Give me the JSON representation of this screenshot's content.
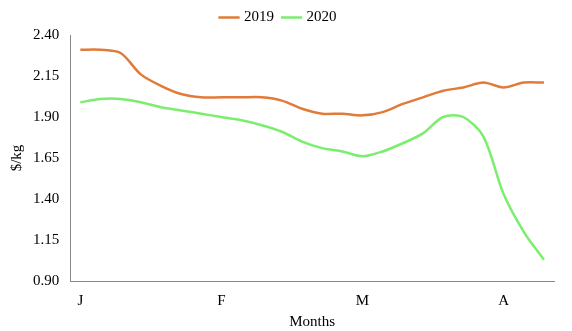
{
  "chart_data": {
    "type": "line",
    "x_label": "Months",
    "y_label": "$/kg",
    "categories": [
      "J",
      null,
      null,
      null,
      null,
      null,
      null,
      "F",
      null,
      null,
      null,
      null,
      null,
      null,
      "M",
      null,
      null,
      null,
      null,
      null,
      null,
      "A",
      null,
      null
    ],
    "series": [
      {
        "name": "2019",
        "color": "#e07b39",
        "values": [
          2.31,
          2.31,
          2.29,
          2.16,
          2.09,
          2.04,
          2.02,
          2.02,
          2.02,
          2.02,
          2.0,
          1.95,
          1.92,
          1.92,
          1.91,
          1.93,
          1.98,
          2.02,
          2.06,
          2.08,
          2.11,
          2.08,
          2.11,
          2.11
        ]
      },
      {
        "name": "2020",
        "color": "#7ced6e",
        "values": [
          1.99,
          2.01,
          2.01,
          1.99,
          1.96,
          1.94,
          1.92,
          1.9,
          1.88,
          1.85,
          1.81,
          1.75,
          1.71,
          1.69,
          1.66,
          1.69,
          1.74,
          1.8,
          1.9,
          1.9,
          1.78,
          1.43,
          1.2,
          1.03
        ]
      }
    ],
    "ylim": [
      0.9,
      2.4
    ],
    "yticks": [
      {
        "value": 0.9,
        "label": "0.90"
      },
      {
        "value": 1.15,
        "label": "1.15"
      },
      {
        "value": 1.4,
        "label": "1.40"
      },
      {
        "value": 1.65,
        "label": "1.65"
      },
      {
        "value": 1.9,
        "label": "1.90"
      },
      {
        "value": 2.15,
        "label": "2.15"
      },
      {
        "value": 2.4,
        "label": "2.40"
      }
    ],
    "grid": false,
    "legend": "top"
  }
}
